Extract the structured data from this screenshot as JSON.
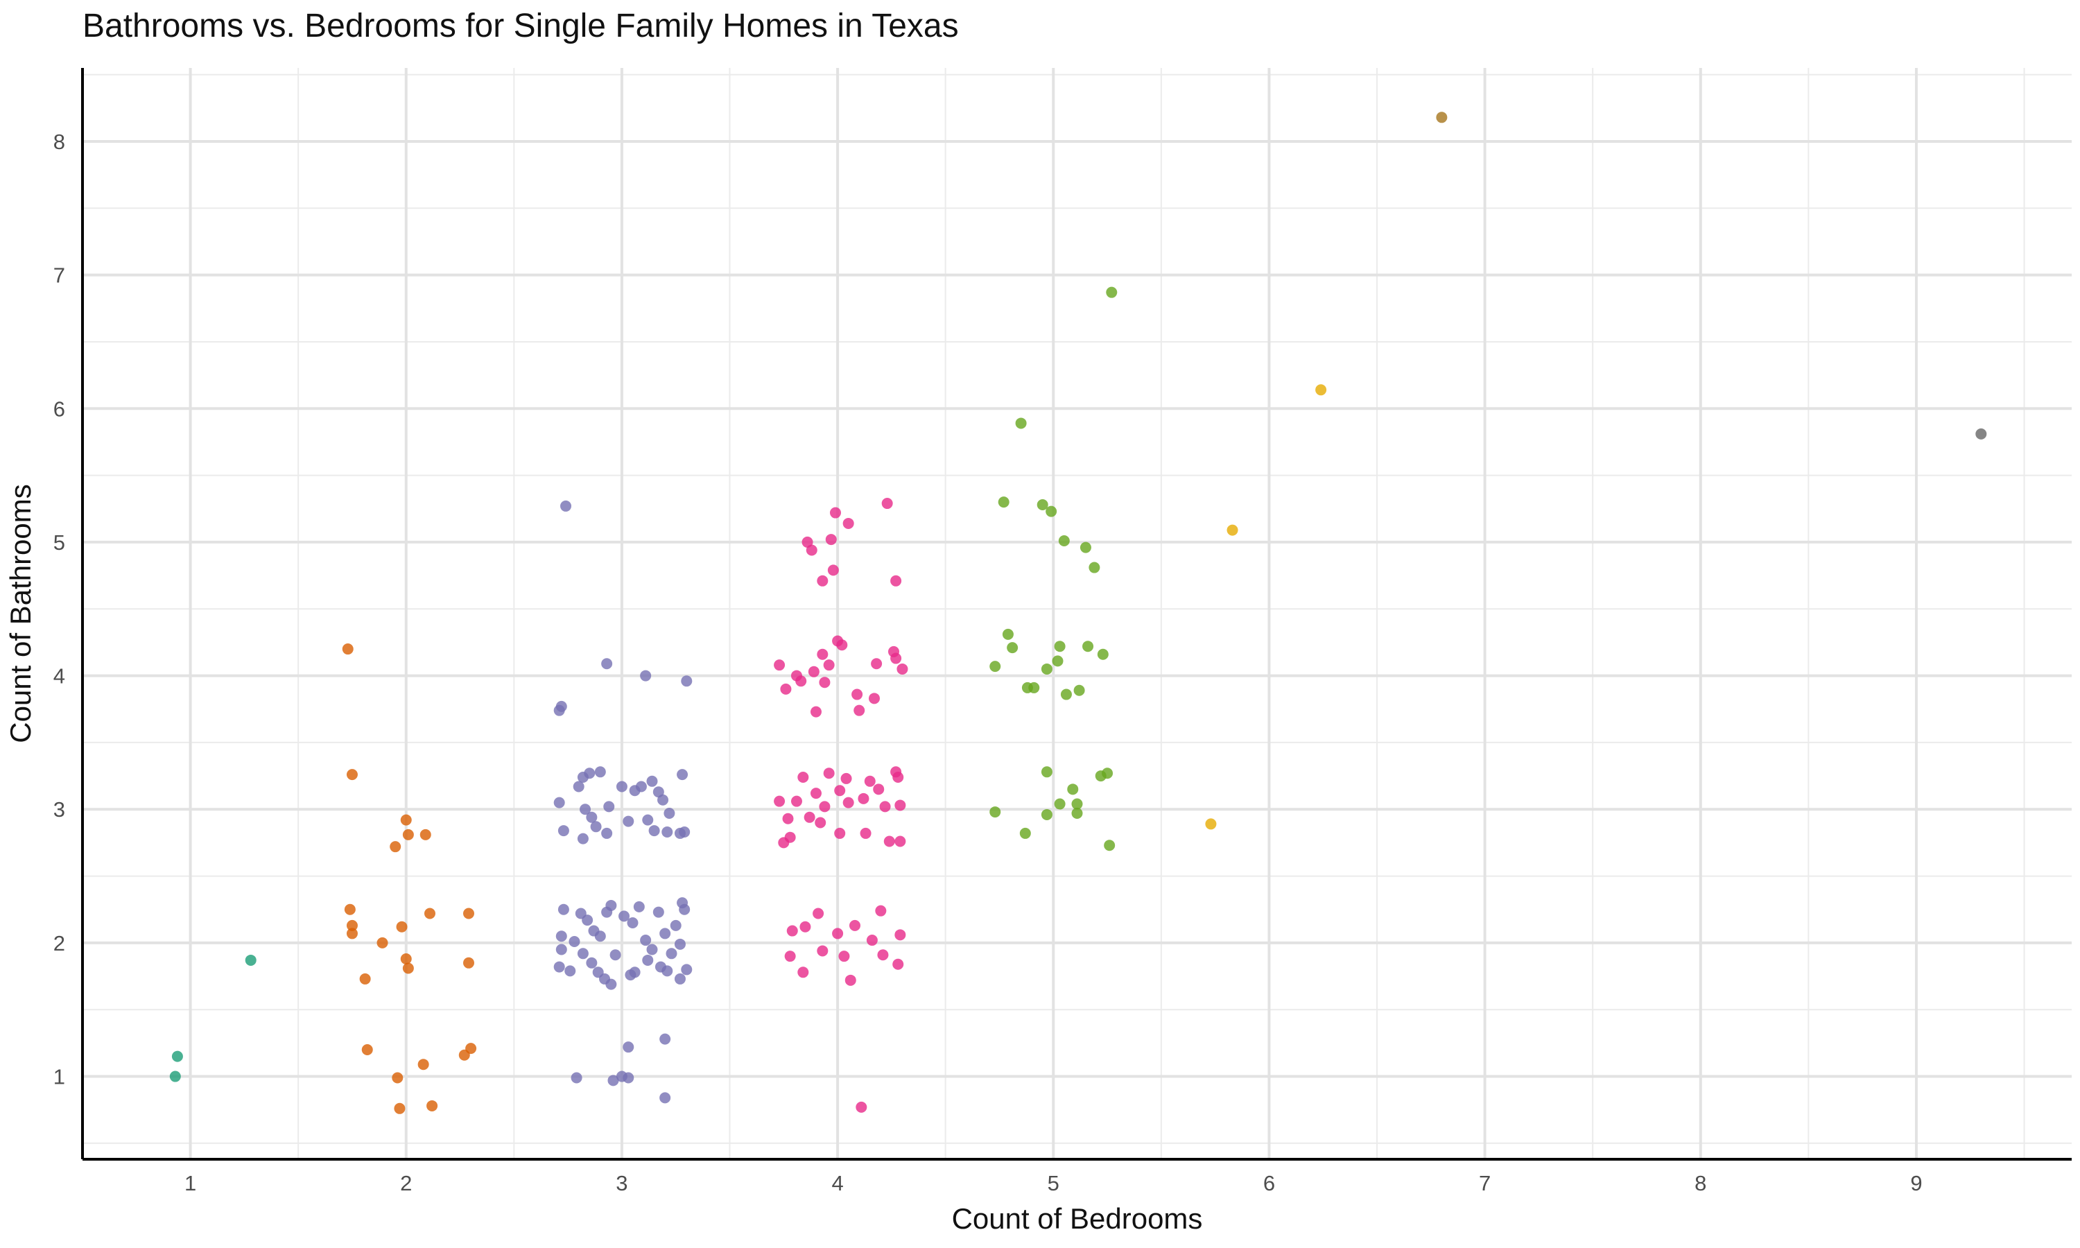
{
  "chart_data": {
    "type": "scatter",
    "title": "Bathrooms vs. Bedrooms for Single Family Homes in Texas",
    "xlabel": "Count of Bedrooms",
    "ylabel": "Count of Bathrooms",
    "xlim": [
      0.5,
      9.72
    ],
    "ylim": [
      0.38,
      8.55
    ],
    "xticks": [
      1,
      2,
      3,
      4,
      5,
      6,
      7,
      8,
      9
    ],
    "yticks": [
      1,
      2,
      3,
      4,
      5,
      6,
      7,
      8
    ],
    "grid": true,
    "legend": "none",
    "series": [
      {
        "color": "#1b9e77",
        "points": [
          [
            0.93,
            1.0
          ],
          [
            0.94,
            1.15
          ],
          [
            1.28,
            1.87
          ]
        ]
      },
      {
        "color": "#d95f02",
        "points": [
          [
            1.73,
            4.2
          ],
          [
            1.75,
            3.26
          ],
          [
            1.74,
            2.25
          ],
          [
            1.75,
            2.13
          ],
          [
            1.75,
            2.07
          ],
          [
            1.81,
            1.73
          ],
          [
            1.82,
            1.2
          ],
          [
            1.89,
            2.0
          ],
          [
            1.95,
            2.72
          ],
          [
            1.96,
            0.99
          ],
          [
            1.97,
            0.76
          ],
          [
            2.0,
            2.92
          ],
          [
            2.01,
            2.81
          ],
          [
            1.98,
            2.12
          ],
          [
            2.0,
            1.88
          ],
          [
            2.01,
            1.81
          ],
          [
            2.08,
            1.09
          ],
          [
            2.09,
            2.81
          ],
          [
            2.11,
            2.22
          ],
          [
            2.12,
            0.78
          ],
          [
            2.27,
            1.16
          ],
          [
            2.29,
            2.22
          ],
          [
            2.29,
            1.85
          ],
          [
            2.3,
            1.21
          ]
        ]
      },
      {
        "color": "#7570b3",
        "points": [
          [
            2.74,
            5.27
          ],
          [
            2.72,
            3.77
          ],
          [
            2.71,
            3.74
          ],
          [
            2.71,
            3.05
          ],
          [
            2.73,
            2.84
          ],
          [
            2.73,
            2.25
          ],
          [
            2.72,
            2.05
          ],
          [
            2.72,
            1.95
          ],
          [
            2.71,
            1.82
          ],
          [
            2.8,
            3.17
          ],
          [
            2.82,
            3.24
          ],
          [
            2.85,
            3.27
          ],
          [
            2.83,
            3.0
          ],
          [
            2.86,
            2.94
          ],
          [
            2.88,
            2.87
          ],
          [
            2.82,
            2.78
          ],
          [
            2.9,
            3.28
          ],
          [
            2.93,
            4.09
          ],
          [
            2.93,
            2.82
          ],
          [
            2.94,
            3.02
          ],
          [
            2.81,
            2.22
          ],
          [
            2.84,
            2.17
          ],
          [
            2.87,
            2.09
          ],
          [
            2.9,
            2.05
          ],
          [
            2.93,
            2.23
          ],
          [
            2.95,
            2.28
          ],
          [
            2.82,
            1.92
          ],
          [
            2.86,
            1.85
          ],
          [
            2.89,
            1.78
          ],
          [
            2.92,
            1.73
          ],
          [
            2.95,
            1.69
          ],
          [
            2.79,
            0.99
          ],
          [
            2.96,
            0.97
          ],
          [
            3.0,
            1.0
          ],
          [
            3.03,
            0.99
          ],
          [
            3.03,
            1.22
          ],
          [
            3.0,
            3.17
          ],
          [
            3.03,
            2.91
          ],
          [
            3.06,
            3.14
          ],
          [
            3.09,
            3.17
          ],
          [
            3.11,
            4.0
          ],
          [
            3.12,
            2.92
          ],
          [
            3.01,
            2.2
          ],
          [
            3.05,
            2.15
          ],
          [
            3.08,
            2.27
          ],
          [
            3.11,
            2.02
          ],
          [
            3.12,
            1.87
          ],
          [
            3.06,
            1.78
          ],
          [
            3.14,
            3.21
          ],
          [
            3.17,
            3.13
          ],
          [
            3.19,
            3.07
          ],
          [
            3.22,
            2.97
          ],
          [
            3.15,
            2.84
          ],
          [
            3.21,
            2.83
          ],
          [
            3.17,
            2.23
          ],
          [
            3.2,
            2.07
          ],
          [
            3.23,
            1.92
          ],
          [
            3.18,
            1.82
          ],
          [
            3.21,
            1.79
          ],
          [
            3.2,
            1.28
          ],
          [
            3.2,
            0.84
          ],
          [
            3.28,
            3.26
          ],
          [
            3.27,
            2.82
          ],
          [
            3.29,
            2.83
          ],
          [
            3.29,
            2.25
          ],
          [
            3.28,
            2.3
          ],
          [
            3.27,
            1.99
          ],
          [
            3.3,
            1.8
          ],
          [
            3.27,
            1.73
          ],
          [
            3.3,
            3.96
          ],
          [
            2.76,
            1.79
          ],
          [
            2.78,
            2.01
          ],
          [
            2.97,
            1.91
          ],
          [
            3.04,
            1.76
          ],
          [
            3.14,
            1.95
          ],
          [
            3.25,
            2.13
          ]
        ]
      },
      {
        "color": "#e7298a",
        "points": [
          [
            3.73,
            4.08
          ],
          [
            3.76,
            3.9
          ],
          [
            3.73,
            3.06
          ],
          [
            3.75,
            2.75
          ],
          [
            3.77,
            2.93
          ],
          [
            3.78,
            2.79
          ],
          [
            3.79,
            2.09
          ],
          [
            3.78,
            1.9
          ],
          [
            3.81,
            4.0
          ],
          [
            3.83,
            3.96
          ],
          [
            3.81,
            3.06
          ],
          [
            3.84,
            3.24
          ],
          [
            3.85,
            2.12
          ],
          [
            3.84,
            1.78
          ],
          [
            3.86,
            5.0
          ],
          [
            3.88,
            4.94
          ],
          [
            3.89,
            4.03
          ],
          [
            3.9,
            3.73
          ],
          [
            3.9,
            3.12
          ],
          [
            3.92,
            2.9
          ],
          [
            3.91,
            2.22
          ],
          [
            3.93,
            4.71
          ],
          [
            3.93,
            4.16
          ],
          [
            3.94,
            3.95
          ],
          [
            3.94,
            3.02
          ],
          [
            3.97,
            5.02
          ],
          [
            3.98,
            4.79
          ],
          [
            3.96,
            4.08
          ],
          [
            3.96,
            3.27
          ],
          [
            4.0,
            4.26
          ],
          [
            4.02,
            4.23
          ],
          [
            4.01,
            3.14
          ],
          [
            4.04,
            3.23
          ],
          [
            4.01,
            2.82
          ],
          [
            4.0,
            2.07
          ],
          [
            4.03,
            1.9
          ],
          [
            4.05,
            5.14
          ],
          [
            4.05,
            3.05
          ],
          [
            4.06,
            1.72
          ],
          [
            4.09,
            3.86
          ],
          [
            4.1,
            3.74
          ],
          [
            4.12,
            3.08
          ],
          [
            4.13,
            2.82
          ],
          [
            4.11,
            0.77
          ],
          [
            4.15,
            3.21
          ],
          [
            4.17,
            3.83
          ],
          [
            4.18,
            4.09
          ],
          [
            4.19,
            3.15
          ],
          [
            4.2,
            2.24
          ],
          [
            4.21,
            1.91
          ],
          [
            4.23,
            5.29
          ],
          [
            4.22,
            3.02
          ],
          [
            4.24,
            2.76
          ],
          [
            4.26,
            4.18
          ],
          [
            4.27,
            4.13
          ],
          [
            4.27,
            4.71
          ],
          [
            4.27,
            3.28
          ],
          [
            4.28,
            3.24
          ],
          [
            4.29,
            3.03
          ],
          [
            4.29,
            2.76
          ],
          [
            4.3,
            4.05
          ],
          [
            4.29,
            2.06
          ],
          [
            4.28,
            1.84
          ],
          [
            3.99,
            5.22
          ],
          [
            3.93,
            1.94
          ],
          [
            4.08,
            2.13
          ],
          [
            3.87,
            2.94
          ],
          [
            4.16,
            2.02
          ]
        ]
      },
      {
        "color": "#66a61e",
        "points": [
          [
            4.73,
            4.07
          ],
          [
            4.73,
            2.98
          ],
          [
            4.77,
            5.3
          ],
          [
            4.79,
            4.31
          ],
          [
            4.81,
            4.21
          ],
          [
            4.85,
            5.89
          ],
          [
            4.87,
            2.82
          ],
          [
            4.88,
            3.91
          ],
          [
            4.91,
            3.91
          ],
          [
            4.95,
            5.28
          ],
          [
            4.97,
            4.05
          ],
          [
            4.97,
            3.28
          ],
          [
            4.97,
            2.96
          ],
          [
            4.99,
            5.23
          ],
          [
            5.02,
            4.11
          ],
          [
            5.03,
            4.22
          ],
          [
            5.03,
            3.04
          ],
          [
            5.05,
            5.01
          ],
          [
            5.06,
            3.86
          ],
          [
            5.09,
            3.15
          ],
          [
            5.11,
            3.04
          ],
          [
            5.11,
            2.97
          ],
          [
            5.12,
            3.89
          ],
          [
            5.15,
            4.96
          ],
          [
            5.16,
            4.22
          ],
          [
            5.19,
            4.81
          ],
          [
            5.22,
            3.25
          ],
          [
            5.23,
            4.16
          ],
          [
            5.25,
            3.27
          ],
          [
            5.26,
            2.73
          ],
          [
            5.27,
            6.87
          ]
        ]
      },
      {
        "color": "#e6ab02",
        "points": [
          [
            5.73,
            2.89
          ],
          [
            5.83,
            5.09
          ],
          [
            6.24,
            6.14
          ]
        ]
      },
      {
        "color": "#a6761d",
        "points": [
          [
            6.8,
            8.18
          ]
        ]
      },
      {
        "color": "#666666",
        "points": [
          [
            9.3,
            5.81
          ]
        ]
      }
    ]
  }
}
